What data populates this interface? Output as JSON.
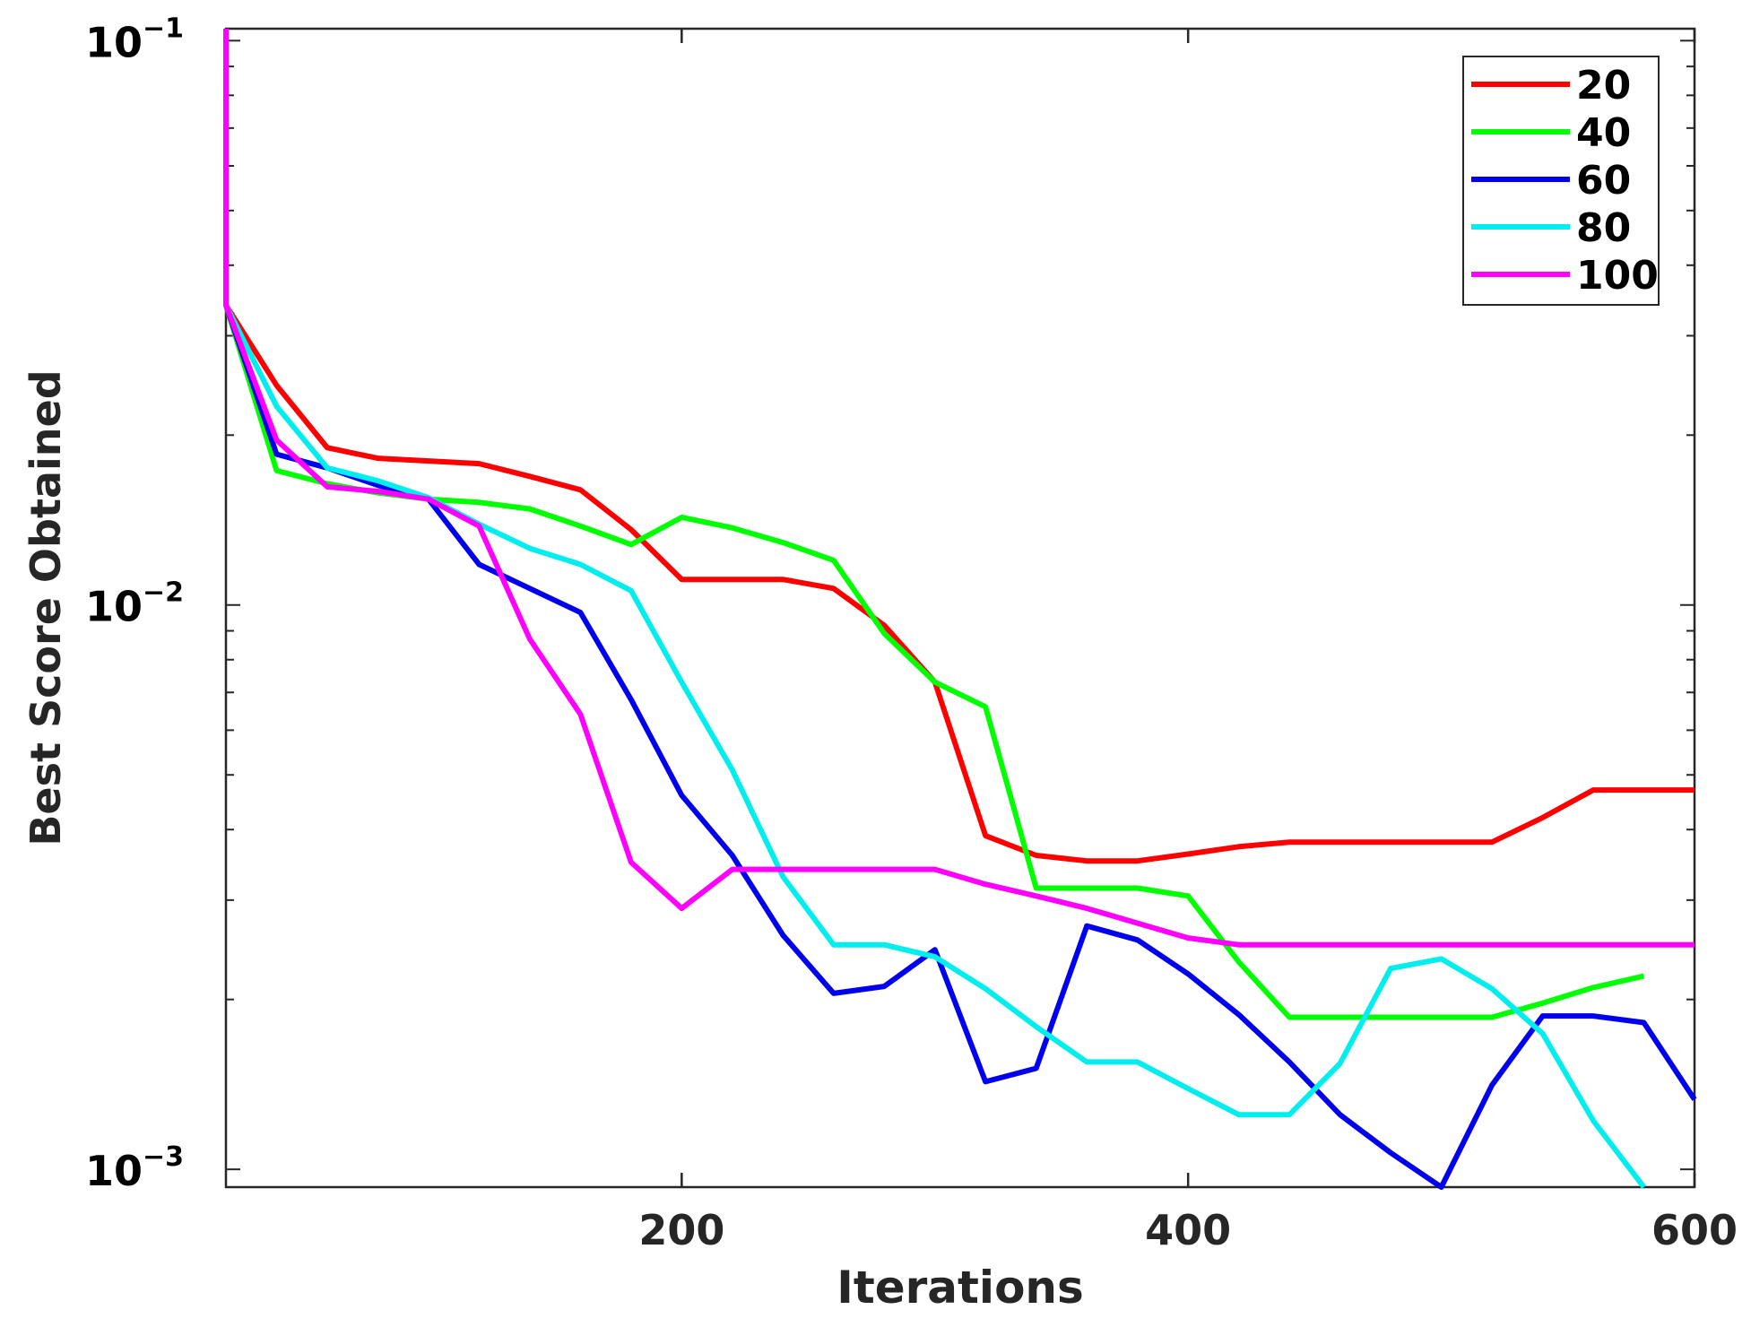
{
  "chart_data": {
    "type": "line",
    "xlabel": "Iterations",
    "ylabel": "Best Score Obtained",
    "xlim": [
      20,
      600
    ],
    "ylim": [
      0.00093,
      0.105
    ],
    "yscale": "log",
    "xticks": [
      200,
      400,
      600
    ],
    "yticks": [
      {
        "value": 0.1,
        "base": "10",
        "exp": "−1"
      },
      {
        "value": 0.01,
        "base": "10",
        "exp": "−2"
      },
      {
        "value": 0.001,
        "base": "10",
        "exp": "−3"
      }
    ],
    "grid": false,
    "legend_position": "top-right",
    "series": [
      {
        "name": "20",
        "color": "#ff0000",
        "x": [
          20,
          40,
          60,
          80,
          100,
          120,
          140,
          160,
          180,
          200,
          220,
          240,
          260,
          280,
          300,
          320,
          340,
          360,
          380,
          400,
          420,
          440,
          460,
          480,
          500,
          520,
          540,
          560,
          580,
          600
        ],
        "y": [
          0.034,
          0.0245,
          0.019,
          0.0182,
          0.018,
          0.0178,
          0.0169,
          0.016,
          0.0136,
          0.0111,
          0.0111,
          0.0111,
          0.0107,
          0.0092,
          0.0073,
          0.0039,
          0.0036,
          0.00352,
          0.00352,
          0.00362,
          0.00373,
          0.0038,
          0.0038,
          0.0038,
          0.0038,
          0.0038,
          0.0042,
          0.0047,
          0.0047,
          0.0047
        ]
      },
      {
        "name": "40",
        "color": "#00ff00",
        "x": [
          20,
          40,
          60,
          80,
          100,
          120,
          140,
          160,
          180,
          200,
          220,
          240,
          260,
          280,
          300,
          320,
          340,
          360,
          380,
          400,
          420,
          440,
          460,
          480,
          500,
          520,
          540,
          560,
          580
        ],
        "y": [
          0.034,
          0.0173,
          0.0164,
          0.0158,
          0.0154,
          0.0152,
          0.0148,
          0.0138,
          0.0128,
          0.0143,
          0.0137,
          0.0129,
          0.012,
          0.0089,
          0.0073,
          0.0066,
          0.00315,
          0.00315,
          0.00315,
          0.00305,
          0.00233,
          0.00186,
          0.00186,
          0.00186,
          0.00186,
          0.00186,
          0.00197,
          0.0021,
          0.0022
        ]
      },
      {
        "name": "60",
        "color": "#0000ee",
        "x": [
          20,
          40,
          60,
          80,
          100,
          120,
          140,
          160,
          180,
          200,
          220,
          240,
          260,
          280,
          300,
          320,
          340,
          360,
          380,
          400,
          420,
          440,
          460,
          480,
          500,
          520,
          540,
          560,
          580,
          600
        ],
        "y": [
          0.034,
          0.0185,
          0.0175,
          0.0163,
          0.0154,
          0.0118,
          0.0107,
          0.0097,
          0.0068,
          0.0046,
          0.0036,
          0.0026,
          0.00205,
          0.00211,
          0.00245,
          0.00143,
          0.00151,
          0.0027,
          0.00255,
          0.00222,
          0.00188,
          0.00155,
          0.00125,
          0.00107,
          0.00092,
          0.00141,
          0.00187,
          0.00187,
          0.00182,
          0.00133
        ]
      },
      {
        "name": "80",
        "color": "#00eeee",
        "x": [
          20,
          40,
          60,
          80,
          100,
          120,
          140,
          160,
          180,
          200,
          220,
          240,
          260,
          280,
          300,
          320,
          340,
          360,
          380,
          400,
          420,
          440,
          460,
          480,
          500,
          520,
          540,
          560,
          580
        ],
        "y": [
          0.034,
          0.0225,
          0.0175,
          0.0166,
          0.0155,
          0.0139,
          0.0126,
          0.0118,
          0.0106,
          0.0073,
          0.0051,
          0.0033,
          0.0025,
          0.0025,
          0.00238,
          0.00209,
          0.00179,
          0.00155,
          0.00155,
          0.00139,
          0.00125,
          0.00125,
          0.00154,
          0.00227,
          0.00236,
          0.00209,
          0.00174,
          0.00122,
          0.00092
        ]
      },
      {
        "name": "100",
        "color": "#ff00ff",
        "x": [
          20,
          20,
          40,
          60,
          80,
          100,
          120,
          140,
          160,
          180,
          200,
          220,
          240,
          260,
          280,
          300,
          320,
          340,
          360,
          380,
          400,
          420,
          440,
          460,
          480,
          500,
          520,
          540,
          560,
          580,
          600
        ],
        "y": [
          0.105,
          0.034,
          0.0196,
          0.0162,
          0.0159,
          0.0154,
          0.0138,
          0.0087,
          0.0064,
          0.0035,
          0.0029,
          0.0034,
          0.0034,
          0.0034,
          0.0034,
          0.0034,
          0.0032,
          0.00305,
          0.0029,
          0.00273,
          0.00257,
          0.0025,
          0.0025,
          0.0025,
          0.0025,
          0.0025,
          0.0025,
          0.0025,
          0.0025,
          0.0025,
          0.0025
        ]
      }
    ]
  }
}
